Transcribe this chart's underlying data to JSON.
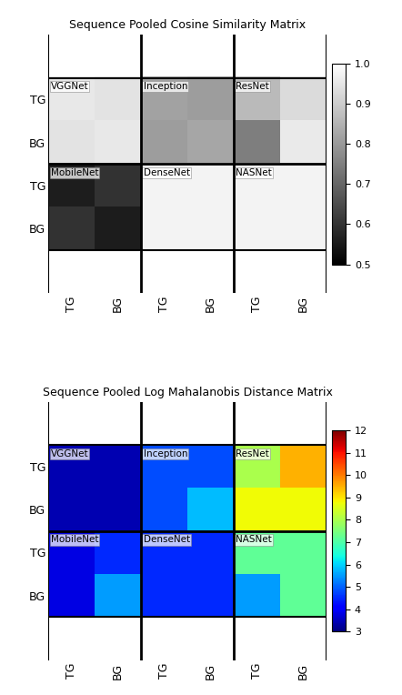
{
  "cosine_title": "Sequence Pooled Cosine Similarity Matrix",
  "mahal_title": "Sequence Pooled Log Mahalanobis Distance Matrix",
  "x_labels": [
    "TG",
    "BG",
    "TG",
    "BG",
    "TG",
    "BG"
  ],
  "y_labels": [
    "TG",
    "BG",
    "TG",
    "BG"
  ],
  "cosine_inner": [
    [
      0.955,
      0.945,
      0.818,
      0.808,
      0.865,
      0.928
    ],
    [
      0.945,
      0.955,
      0.808,
      0.825,
      0.748,
      0.958
    ],
    [
      0.558,
      0.598,
      0.975,
      0.975,
      0.975,
      0.975
    ],
    [
      0.598,
      0.555,
      0.975,
      0.975,
      0.975,
      0.975
    ]
  ],
  "mahal_inner": [
    [
      3.4,
      3.4,
      4.8,
      4.8,
      8.0,
      9.5
    ],
    [
      3.4,
      3.4,
      4.8,
      5.8,
      8.8,
      8.8
    ],
    [
      3.8,
      4.5,
      4.5,
      4.5,
      7.2,
      7.2
    ],
    [
      3.8,
      5.5,
      4.5,
      4.5,
      5.5,
      7.2
    ]
  ],
  "cosine_vmin": 0.5,
  "cosine_vmax": 1.0,
  "cosine_cticks": [
    0.5,
    0.6,
    0.7,
    0.8,
    0.9,
    1.0
  ],
  "mahal_vmin": 3,
  "mahal_vmax": 12,
  "mahal_cticks": [
    3,
    4,
    5,
    6,
    7,
    8,
    9,
    10,
    11,
    12
  ],
  "cosine_cmap": "gray",
  "mahal_cmap": "jet",
  "network_labels": [
    [
      "VGGNet",
      0,
      0
    ],
    [
      "Inception",
      0,
      2
    ],
    [
      "ResNet",
      0,
      4
    ],
    [
      "MobileNet",
      2,
      0
    ],
    [
      "DenseNet",
      2,
      2
    ],
    [
      "NASNet",
      2,
      4
    ]
  ]
}
